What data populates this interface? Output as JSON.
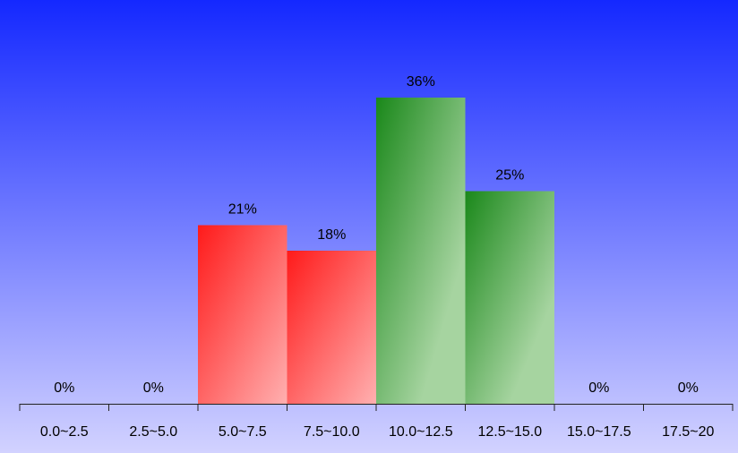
{
  "chart_data": {
    "type": "bar",
    "categories": [
      "0.0~2.5",
      "2.5~5.0",
      "5.0~7.5",
      "7.5~10.0",
      "10.0~12.5",
      "12.5~15.0",
      "15.0~17.5",
      "17.5~20"
    ],
    "values": [
      0,
      0,
      21,
      18,
      36,
      25,
      0,
      0
    ],
    "data_labels": [
      "0%",
      "0%",
      "21%",
      "18%",
      "36%",
      "25%",
      "0%",
      "0%"
    ],
    "bar_groups": [
      "red",
      "red",
      "red",
      "red",
      "green",
      "green",
      "green",
      "green"
    ],
    "title": "",
    "xlabel": "",
    "ylabel": "",
    "ylim": [
      0,
      40
    ],
    "grid": false,
    "legend": "none",
    "colors": {
      "background_top": "#1428ff",
      "background_bottom": "#d2d2ff",
      "red_dark": "#ff1a1a",
      "red_light": "#ffb0b0",
      "green_dark": "#1a881a",
      "green_light": "#a6d4a0",
      "axis": "#222222"
    }
  }
}
